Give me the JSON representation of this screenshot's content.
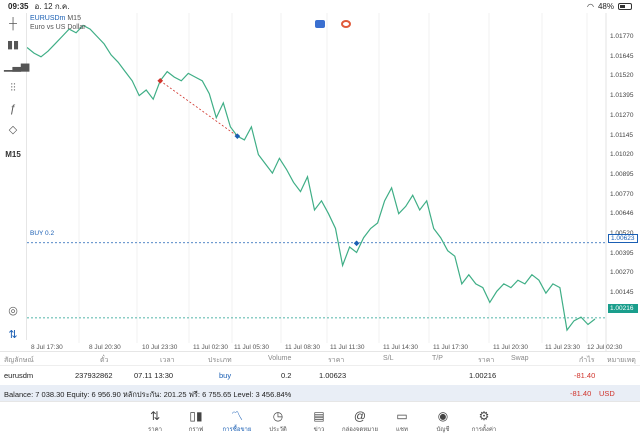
{
  "status": {
    "time": "09:35",
    "date": "อ. 12 ก.ค.",
    "battery": "48%"
  },
  "chart": {
    "symbol": "EURUSDm",
    "timeframe": "M15",
    "description": "Euro vs US Dollar",
    "toolbar_timeframe": "M15",
    "buy_label": "BUY 0.2",
    "buy_price": "1.00623",
    "last_price": "1.00216",
    "price_levels": [
      "1.01770",
      "1.01645",
      "1.01520",
      "1.01395",
      "1.01270",
      "1.01145",
      "1.01020",
      "1.00895",
      "1.00770",
      "1.00646",
      "1.00520",
      "1.00395",
      "1.00270",
      "1.00145"
    ],
    "time_labels": [
      "8 Jul 17:30",
      "8 Jul 20:30",
      "10 Jul 23:30",
      "11 Jul 02:30",
      "11 Jul 05:30",
      "11 Jul 08:30",
      "11 Jul 11:30",
      "11 Jul 14:30",
      "11 Jul 17:30",
      "11 Jul 20:30",
      "11 Jul 23:30",
      "12 Jul 02:30"
    ],
    "colors": {
      "line": "#3fae86",
      "buy": "#1a5fb4",
      "sell": "#d0342c",
      "last": "#1a9e8c"
    }
  },
  "chart_data": {
    "type": "line",
    "title": "",
    "series": [
      {
        "values": [
          1.0168,
          1.0165,
          1.0163,
          1.0166,
          1.017,
          1.0174,
          1.0178,
          1.0176,
          1.018,
          1.0178,
          1.0174,
          1.017,
          1.0164,
          1.016,
          1.0155,
          1.015,
          1.0142,
          1.0145,
          1.014,
          1.015,
          1.0155,
          1.0152,
          1.015,
          1.0154,
          1.0152,
          1.015,
          1.0143,
          1.013,
          1.0138,
          1.0125,
          1.012,
          1.0118,
          1.0125,
          1.011,
          1.0105,
          1.01,
          1.0108,
          1.0102,
          1.0095,
          1.009,
          1.0098,
          1.008,
          1.0085,
          1.0078,
          1.007,
          1.005,
          1.006,
          1.0057,
          1.0065,
          1.007,
          1.0073,
          1.0085,
          1.0092,
          1.0078,
          1.0082,
          1.0088,
          1.008,
          1.0085,
          1.007,
          1.0065,
          1.0058,
          1.0055,
          1.004,
          1.0045,
          1.004,
          1.0038,
          1.003,
          1.0036,
          1.004,
          1.0038,
          1.0042,
          1.004,
          1.0045,
          1.0042,
          1.0035,
          1.004,
          1.0038,
          1.0015,
          1.002,
          1.0022,
          1.0018,
          1.0021
        ]
      }
    ],
    "ylim": [
      1.0008,
      1.0184
    ],
    "markers": [
      {
        "type": "sell",
        "index": 19,
        "value": 1.015
      },
      {
        "type": "buy",
        "index": 30,
        "value": 1.012
      },
      {
        "type": "buy",
        "index": 47,
        "value": 1.0062
      }
    ],
    "hlines": [
      {
        "label": "BUY 0.2",
        "value": 1.00623
      },
      {
        "label": "last",
        "value": 1.00216
      }
    ]
  },
  "table": {
    "headers": {
      "symbol": "สัญลักษณ์",
      "ticket": "ตั๋ว",
      "time": "เวลา",
      "type": "ประเภท",
      "volume": "Volume",
      "price": "ราคา",
      "sl": "S/L",
      "tp": "T/P",
      "current": "ราคา",
      "swap": "Swap",
      "profit": "กำไร",
      "note": "หมายเหตุ"
    },
    "rows": [
      {
        "symbol": "eurusdm",
        "ticket": "237932862",
        "time": "07.11 13:30",
        "type": "buy",
        "volume": "0.2",
        "price": "1.00623",
        "current": "1.00216",
        "profit": "-81.40"
      }
    ]
  },
  "balance": {
    "text": "Balance: 7 038.30 Equity: 6 956.90 หลักประกัน: 201.25 ฟรี: 6 755.65 Level: 3 456.84%",
    "profit": "-81.40",
    "currency": "USD"
  },
  "nav": [
    {
      "label": "ราคา",
      "icon": "quotes-icon"
    },
    {
      "label": "กราฟ",
      "icon": "chart-icon"
    },
    {
      "label": "การซื้อขาย",
      "icon": "trade-icon"
    },
    {
      "label": "ประวัติ",
      "icon": "history-icon"
    },
    {
      "label": "ข่าว",
      "icon": "news-icon"
    },
    {
      "label": "กล่องจดหมาย",
      "icon": "mailbox-icon"
    },
    {
      "label": "แชท",
      "icon": "chat-icon"
    },
    {
      "label": "บัญชี",
      "icon": "account-icon"
    },
    {
      "label": "การตั้งค่า",
      "icon": "settings-icon"
    }
  ]
}
